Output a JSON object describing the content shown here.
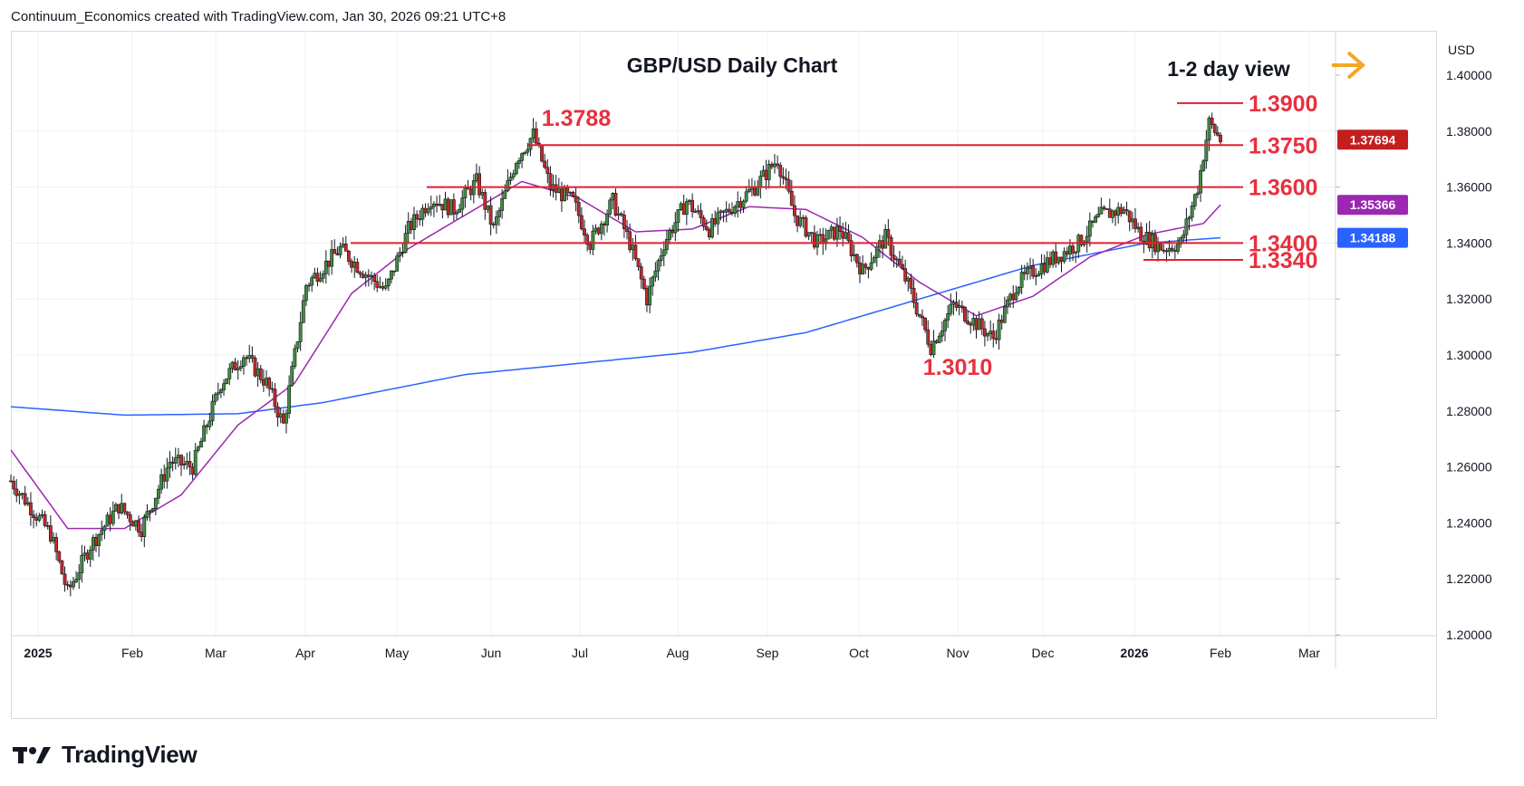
{
  "header": {
    "credit": "Continuum_Economics created with TradingView.com, Jan 30, 2026 09:21 UTC+8"
  },
  "footer": {
    "brand": "TradingView"
  },
  "colors": {
    "level_line": "#e0202f",
    "up_candle": "#3f8f3c",
    "down_candle": "#c62828",
    "ma_short": "#9c27b0",
    "ma_long": "#2962ff",
    "price_badge": "#c41f1f",
    "arrow": "#f5a623"
  },
  "chart_data": {
    "type": "candlestick",
    "title": "GBP/USD Daily Chart",
    "annotation_view": "1-2 day view",
    "currency": "USD",
    "y_ticks": [
      "1.40000",
      "1.38000",
      "1.36000",
      "1.34000",
      "1.32000",
      "1.30000",
      "1.28000",
      "1.26000",
      "1.24000",
      "1.22000",
      "1.20000"
    ],
    "ylim": [
      1.2,
      1.4
    ],
    "x_ticks": [
      "2025",
      "Feb",
      "Mar",
      "Apr",
      "May",
      "Jun",
      "Jul",
      "Aug",
      "Sep",
      "Oct",
      "Nov",
      "Dec",
      "2026",
      "Feb",
      "Mar"
    ],
    "levels": [
      {
        "label": "1.3900",
        "value": 1.39
      },
      {
        "label": "1.3750",
        "value": 1.375
      },
      {
        "label": "1.3600",
        "value": 1.36
      },
      {
        "label": "1.3400",
        "value": 1.34
      },
      {
        "label": "1.3340",
        "value": 1.334
      }
    ],
    "annotations": [
      {
        "label": "1.3788",
        "value": 1.3788
      },
      {
        "label": "1.3010",
        "value": 1.301
      }
    ],
    "price_badges": [
      {
        "label": "1.37694",
        "value": 1.37694,
        "series": "price"
      },
      {
        "label": "1.35366",
        "value": 1.35366,
        "series": "ma_short"
      },
      {
        "label": "1.34188",
        "value": 1.34188,
        "series": "ma_long"
      }
    ],
    "trend_points": [
      [
        0,
        1.255
      ],
      [
        14,
        1.236
      ],
      [
        20,
        1.215
      ],
      [
        28,
        1.232
      ],
      [
        38,
        1.246
      ],
      [
        46,
        1.238
      ],
      [
        56,
        1.262
      ],
      [
        64,
        1.26
      ],
      [
        74,
        1.29
      ],
      [
        82,
        1.3
      ],
      [
        90,
        1.29
      ],
      [
        96,
        1.275
      ],
      [
        104,
        1.325
      ],
      [
        116,
        1.338
      ],
      [
        124,
        1.33
      ],
      [
        132,
        1.323
      ],
      [
        140,
        1.345
      ],
      [
        148,
        1.356
      ],
      [
        156,
        1.352
      ],
      [
        164,
        1.362
      ],
      [
        170,
        1.345
      ],
      [
        178,
        1.37
      ],
      [
        184,
        1.3788
      ],
      [
        190,
        1.36
      ],
      [
        198,
        1.355
      ],
      [
        204,
        1.34
      ],
      [
        212,
        1.355
      ],
      [
        218,
        1.34
      ],
      [
        224,
        1.32
      ],
      [
        230,
        1.34
      ],
      [
        238,
        1.355
      ],
      [
        246,
        1.345
      ],
      [
        254,
        1.353
      ],
      [
        262,
        1.36
      ],
      [
        270,
        1.37
      ],
      [
        276,
        1.35
      ],
      [
        284,
        1.34
      ],
      [
        292,
        1.345
      ],
      [
        300,
        1.33
      ],
      [
        308,
        1.342
      ],
      [
        316,
        1.325
      ],
      [
        324,
        1.303
      ],
      [
        332,
        1.318
      ],
      [
        338,
        1.313
      ],
      [
        346,
        1.306
      ],
      [
        354,
        1.325
      ],
      [
        360,
        1.33
      ],
      [
        368,
        1.335
      ],
      [
        376,
        1.34
      ],
      [
        384,
        1.35
      ],
      [
        392,
        1.352
      ],
      [
        398,
        1.343
      ],
      [
        406,
        1.338
      ],
      [
        412,
        1.34
      ],
      [
        418,
        1.36
      ],
      [
        422,
        1.383
      ],
      [
        426,
        1.3769
      ]
    ],
    "ma_short_points": [
      [
        0,
        1.266
      ],
      [
        20,
        1.238
      ],
      [
        40,
        1.238
      ],
      [
        60,
        1.25
      ],
      [
        80,
        1.275
      ],
      [
        100,
        1.29
      ],
      [
        120,
        1.322
      ],
      [
        140,
        1.338
      ],
      [
        160,
        1.35
      ],
      [
        180,
        1.362
      ],
      [
        200,
        1.356
      ],
      [
        220,
        1.344
      ],
      [
        240,
        1.345
      ],
      [
        260,
        1.353
      ],
      [
        280,
        1.352
      ],
      [
        300,
        1.342
      ],
      [
        320,
        1.326
      ],
      [
        340,
        1.314
      ],
      [
        360,
        1.321
      ],
      [
        380,
        1.335
      ],
      [
        400,
        1.343
      ],
      [
        420,
        1.347
      ],
      [
        426,
        1.35366
      ]
    ],
    "ma_long_points": [
      [
        0,
        1.2815
      ],
      [
        40,
        1.2785
      ],
      [
        80,
        1.279
      ],
      [
        110,
        1.283
      ],
      [
        160,
        1.293
      ],
      [
        200,
        1.297
      ],
      [
        240,
        1.301
      ],
      [
        280,
        1.308
      ],
      [
        320,
        1.32
      ],
      [
        360,
        1.332
      ],
      [
        400,
        1.34
      ],
      [
        426,
        1.34188
      ]
    ]
  }
}
